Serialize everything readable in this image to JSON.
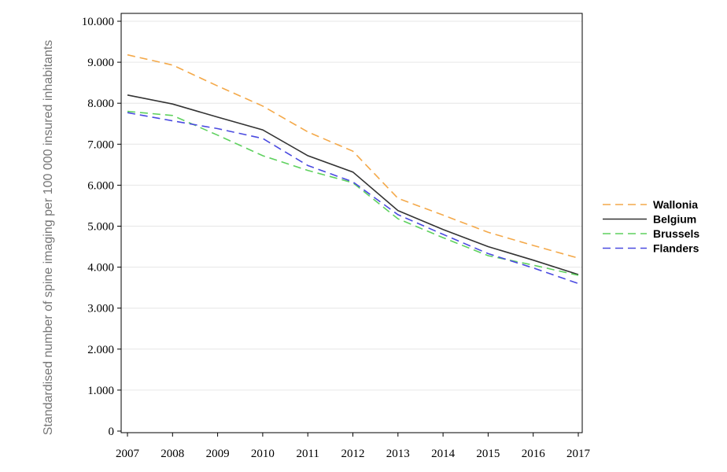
{
  "chart_data": {
    "type": "line",
    "title": "",
    "xlabel": "",
    "ylabel": "Standardised number of spine imaging per 100 000 insured inhabitants",
    "x": [
      "2007",
      "2008",
      "2009",
      "2010",
      "2011",
      "2012",
      "2013",
      "2014",
      "2015",
      "2016",
      "2017"
    ],
    "ylim": [
      0,
      10000
    ],
    "yticks": [
      0,
      1000,
      2000,
      3000,
      4000,
      5000,
      6000,
      7000,
      8000,
      9000,
      10000
    ],
    "ytick_labels": [
      "0",
      "1.000",
      "2.000",
      "3.000",
      "4.000",
      "5.000",
      "6.000",
      "7.000",
      "8.000",
      "9.000",
      "10.000"
    ],
    "grid": "horizontal",
    "legend_position": "right",
    "series": [
      {
        "name": "Wallonia",
        "color": "#f4a94a",
        "dash": "dashed",
        "values": [
          9180,
          8930,
          8420,
          7930,
          7300,
          6830,
          5680,
          5270,
          4850,
          4530,
          4220
        ]
      },
      {
        "name": "Belgium",
        "color": "#333333",
        "dash": "solid",
        "values": [
          8200,
          7980,
          7660,
          7350,
          6720,
          6320,
          5380,
          4920,
          4500,
          4170,
          3820
        ]
      },
      {
        "name": "Brussels",
        "color": "#5fd15f",
        "dash": "dashed",
        "values": [
          7800,
          7700,
          7220,
          6720,
          6360,
          6060,
          5180,
          4720,
          4280,
          4050,
          3800
        ]
      },
      {
        "name": "Flanders",
        "color": "#4a4ae0",
        "dash": "dashed",
        "values": [
          7770,
          7570,
          7380,
          7140,
          6480,
          6080,
          5280,
          4800,
          4330,
          3980,
          3600
        ]
      }
    ]
  }
}
